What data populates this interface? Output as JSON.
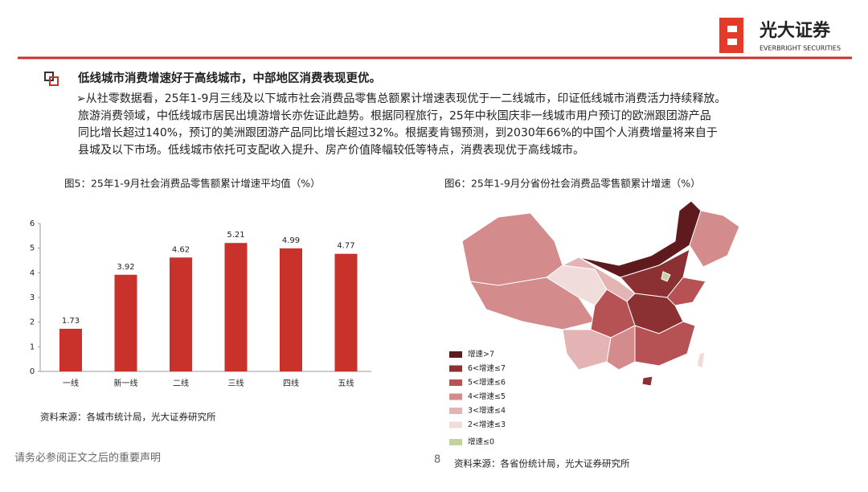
{
  "header": {
    "logo_cn": "光大证券",
    "logo_en": "EVERBRIGHT SECURITIES"
  },
  "section": {
    "heading": "低线城市消费增速好于高线城市，中部地区消费表现更优。",
    "lines": [
      "➢从社零数据看，25年1-9月三线及以下城市社会消费品零售总额累计增速表现优于一二线城市，印证低线城市消费活力持续释放。",
      "旅游消费领域，中低线城市居民出境游增长亦佐证此趋势。根据同程旅行，25年中秋国庆非一线城市用户预订的欧洲跟团游产品",
      "同比增长超过140%，预订的美洲跟团游产品同比增长超过32%。根据麦肯锡预测，到2030年66%的中国个人消费增量将来自于",
      "县城及以下市场。低线城市依托可支配收入提升、房产价值降幅较低等特点，消费表现优于高线城市。"
    ]
  },
  "chart_data": {
    "type": "bar",
    "title": "图5：25年1-9月社会消费品零售额累计增速平均值（%）",
    "categories": [
      "一线",
      "新一线",
      "二线",
      "三线",
      "四线",
      "五线"
    ],
    "values": [
      1.73,
      3.92,
      4.62,
      5.21,
      4.99,
      4.77
    ],
    "color": "#c9312b",
    "ylim": [
      0,
      6
    ],
    "yticks": [
      0,
      1,
      2,
      3,
      4,
      5,
      6
    ],
    "source": "资料来源：各城市统计局，光大证券研究所"
  },
  "map": {
    "title": "图6：25年1-9月分省份社会消费品零售额累计增速（%）",
    "legend": [
      {
        "label": "增速>7",
        "color": "#5e1a1c"
      },
      {
        "label": "6<增速≤7",
        "color": "#8c3133"
      },
      {
        "label": "5<增速≤6",
        "color": "#b65253"
      },
      {
        "label": "4<增速≤5",
        "color": "#d48b8c"
      },
      {
        "label": "3<增速≤4",
        "color": "#e4b3b4"
      },
      {
        "label": "2<增速≤3",
        "color": "#f1dcdc"
      },
      {
        "label": "增速≤0",
        "color": "#c3d39c"
      }
    ],
    "source": "资料来源：各省份统计局，光大证券研究所"
  },
  "footer": {
    "disclaimer": "请务必参阅正文之后的重要声明",
    "page": 8
  }
}
